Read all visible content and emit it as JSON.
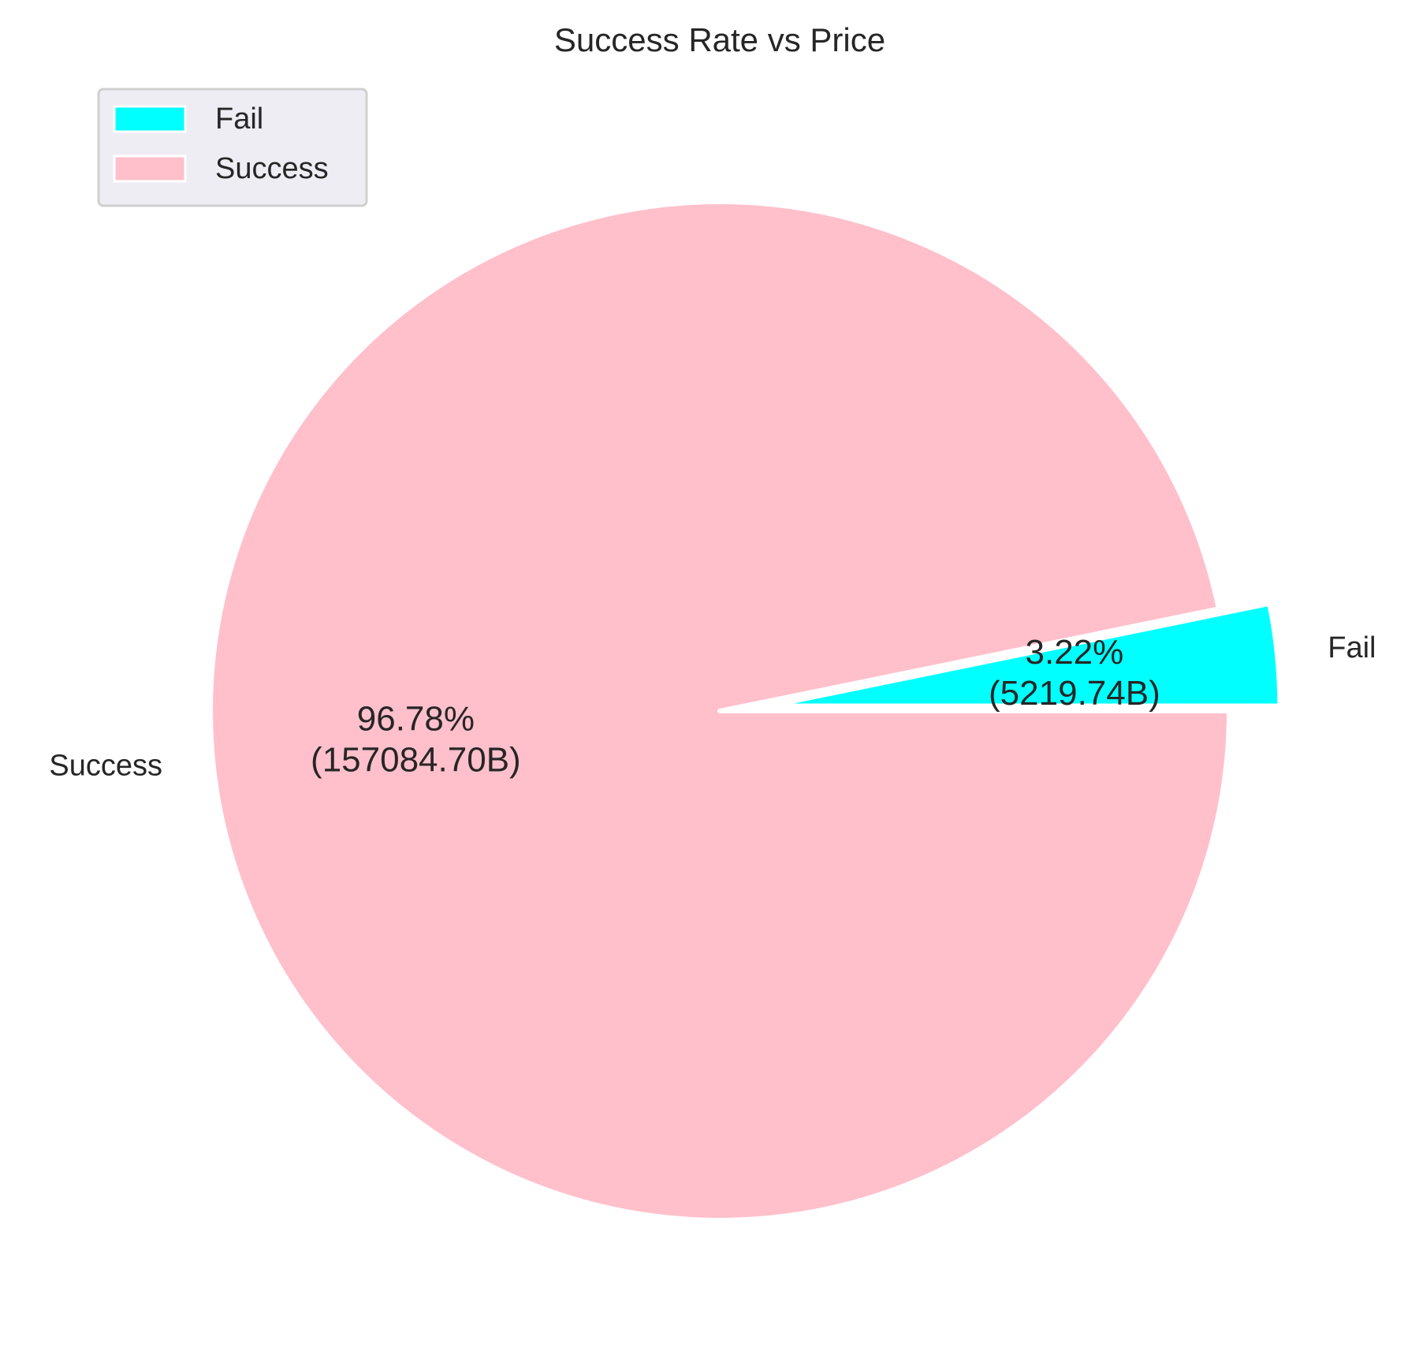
{
  "chart_data": {
    "type": "pie",
    "title": "Success Rate vs Price",
    "slices": [
      {
        "label": "Fail",
        "value": 5219.74,
        "percent": 3.22,
        "percent_text": "3.22%",
        "value_text": "(5219.74B)",
        "color": "#00FFFF",
        "exploded": true
      },
      {
        "label": "Success",
        "value": 157084.7,
        "percent": 96.78,
        "percent_text": "96.78%",
        "value_text": "(157084.70B)",
        "color": "#FFC0CB",
        "exploded": false
      }
    ],
    "start_angle_deg": 0,
    "direction": "counterclockwise",
    "legend": {
      "placement": "top-left",
      "entries": [
        "Fail",
        "Success"
      ]
    }
  }
}
